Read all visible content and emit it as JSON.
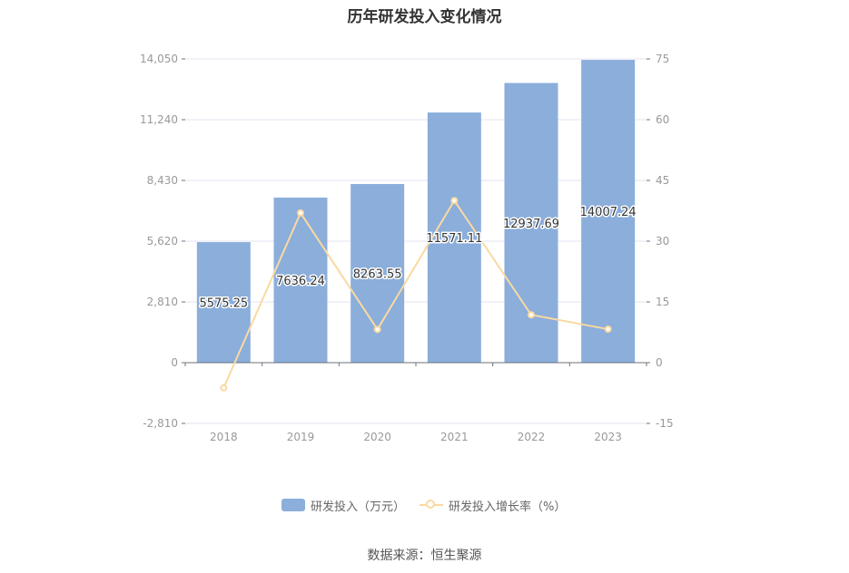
{
  "title": "历年研发投入变化情况",
  "source": "数据来源：恒生聚源",
  "colors": {
    "bar": "#8BAEDB",
    "line": "#FAD9A1",
    "axis_text": "#999999",
    "grid": "#E3E6F0"
  },
  "legend": {
    "bar_label": "研发投入（万元）",
    "line_label": "研发投入增长率（%）"
  },
  "chart_data": {
    "type": "bar",
    "categories": [
      "2018",
      "2019",
      "2020",
      "2021",
      "2022",
      "2023"
    ],
    "series": [
      {
        "name": "研发投入（万元）",
        "type": "bar",
        "axis": "left",
        "values": [
          5575.25,
          7636.24,
          8263.55,
          11571.11,
          12937.69,
          14007.24
        ],
        "labels": [
          "5575.25",
          "7636.24",
          "8263.55",
          "11571.11",
          "12937.69",
          "14007.24"
        ]
      },
      {
        "name": "研发投入增长率（%）",
        "type": "line",
        "axis": "right",
        "values": [
          -6.2,
          36.97,
          8.21,
          40.03,
          11.81,
          8.27
        ]
      }
    ],
    "y_left": {
      "ticks": [
        -2810,
        0,
        2810,
        5620,
        8430,
        11240,
        14050
      ],
      "tick_labels": [
        "-2,810",
        "0",
        "2,810",
        "5,620",
        "8,430",
        "11,240",
        "14,050"
      ],
      "range": [
        -2810,
        14050
      ]
    },
    "y_right": {
      "ticks": [
        -15,
        0,
        15,
        30,
        45,
        60,
        75
      ],
      "tick_labels": [
        "-15",
        "0",
        "15",
        "30",
        "45",
        "60",
        "75"
      ],
      "range": [
        -15,
        75
      ]
    },
    "grid": true,
    "legend_position": "bottom"
  }
}
